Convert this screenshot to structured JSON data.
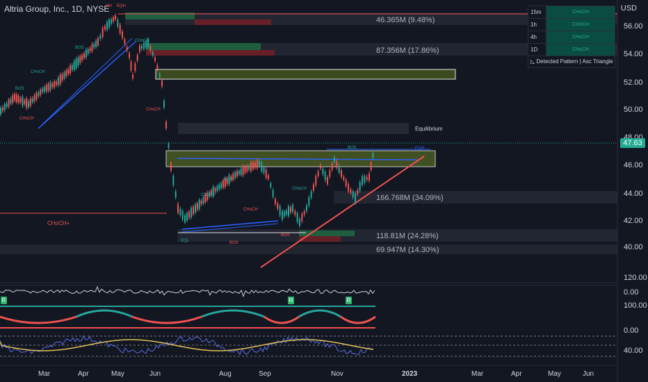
{
  "header": {
    "title": "Altria Group, Inc., 1D, NYSE",
    "currency": "USD"
  },
  "price_axis": {
    "labels": [
      "56.00",
      "54.00",
      "52.00",
      "50.00",
      "48.00",
      "46.00",
      "44.00",
      "42.00",
      "40.00"
    ],
    "current_price": "47.63"
  },
  "indicator_axes": {
    "osc1": [
      "120.00",
      "0.00"
    ],
    "osc2": [
      "100.00",
      "0.00"
    ],
    "osc3": [
      "40.00"
    ]
  },
  "time_axis": [
    "Mar",
    "Apr",
    "May",
    "Jun",
    "Aug",
    "Sep",
    "Nov",
    "2023",
    "Mar",
    "Apr",
    "May",
    "Jun"
  ],
  "volume_zones": [
    "46.365M (9.48%)",
    "87.356M (17.86%)",
    "166.768M (34.09%)",
    "118.81M (24.28%)",
    "69.947M (14.30%)"
  ],
  "equilibrium_label": "Equilibrium",
  "structure_labels": {
    "bos": "BOS",
    "choch": "CHoCH",
    "choch_plus": "CHoCH+",
    "hh": "HH",
    "eqh": "EQH",
    "eql": "EQL"
  },
  "timeframe_table": {
    "rows": [
      {
        "tf": "15m",
        "status": "CHoCH"
      },
      {
        "tf": "1h",
        "status": "CHoCH"
      },
      {
        "tf": "4h",
        "status": "CHoCH"
      },
      {
        "tf": "1D",
        "status": "CHoCH"
      }
    ],
    "pattern_label": "Detected Pattern | Asc Triangle"
  },
  "signal_badge": "R",
  "colors": {
    "bull": "#26a69a",
    "bear": "#ef5350",
    "bg": "#131722",
    "accent_green": "#22ab94"
  }
}
